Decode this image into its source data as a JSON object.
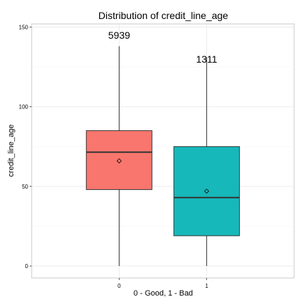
{
  "chart_data": {
    "type": "box",
    "title": "Distribution of credit_line_age",
    "xlabel": "0 - Good, 1 - Bad",
    "ylabel": "credit_line_age",
    "categories": [
      "0",
      "1"
    ],
    "ylim": [
      -7.5,
      152
    ],
    "y_ticks": [
      0,
      50,
      100,
      150
    ],
    "grid": true,
    "boxes": [
      {
        "category": "0",
        "min": 0,
        "q1": 48,
        "median": 71.5,
        "q3": 85,
        "max": 138,
        "mean": 66,
        "count_label": "5939",
        "count_label_y": 145,
        "color": "#F8766D"
      },
      {
        "category": "1",
        "min": 0,
        "q1": 19,
        "median": 43,
        "q3": 75,
        "max": 131,
        "mean": 47,
        "count_label": "1311",
        "count_label_y": 130,
        "color": "#17B8BA"
      }
    ]
  },
  "colors": {
    "panel_background": "#FFFFFF",
    "panel_border": "#C8C8C8",
    "major_grid": "#EBEBEB",
    "minor_grid": "#F5F5F5",
    "box_outline": "#333333"
  }
}
